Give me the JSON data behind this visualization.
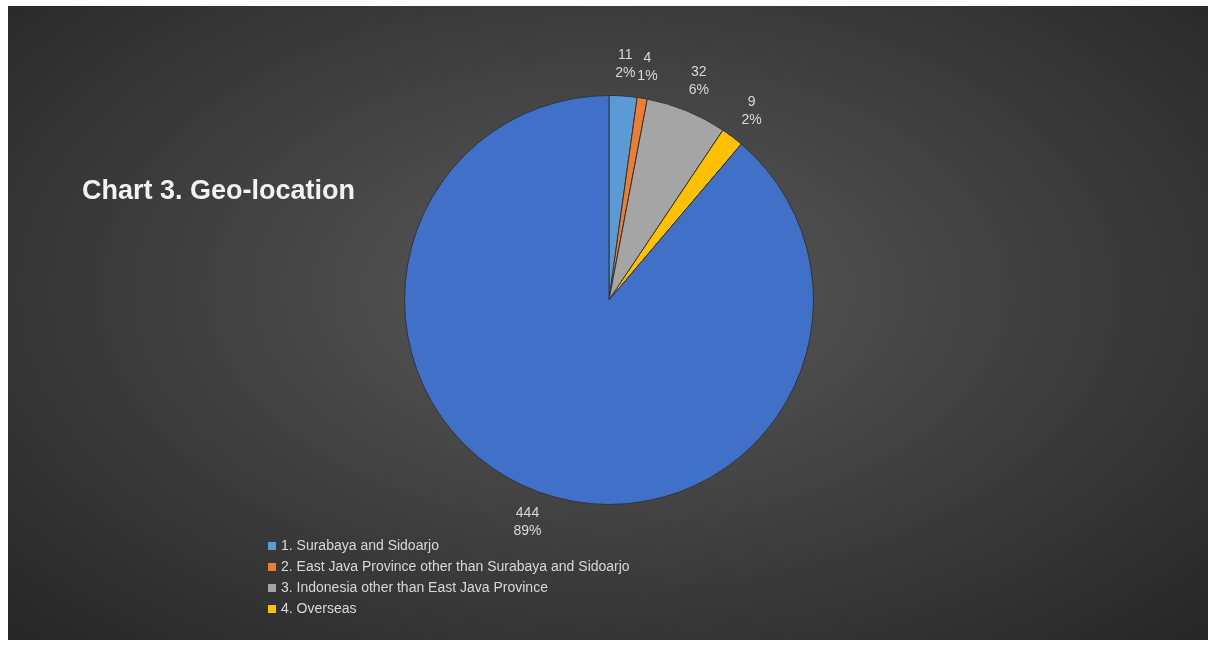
{
  "chart_data": {
    "type": "pie",
    "title": "Chart 3. Geo-location",
    "categories": [
      "1. Surabaya and Sidoarjo",
      "2. East Java Province other than Surabaya and Sidoarjo",
      "3. Indonesia other than East Java Province",
      "4. Overseas",
      null
    ],
    "values": [
      11,
      4,
      32,
      9,
      444
    ],
    "colors": [
      "#5b9bd5",
      "#ed7d31",
      "#a5a5a5",
      "#ffc000",
      "#4070c8"
    ],
    "value_labels": [
      "11\n2%",
      "4\n1%",
      "32\n6%",
      "9\n2%",
      "444\n89%"
    ],
    "legend": "bottom left"
  }
}
